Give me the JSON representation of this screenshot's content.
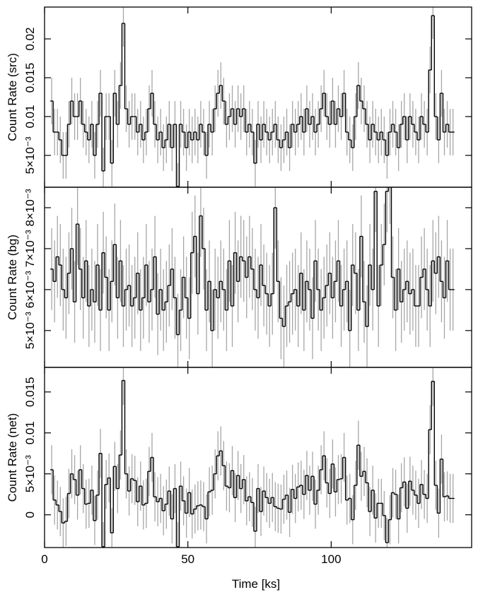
{
  "chart_data": [
    {
      "type": "line",
      "step": true,
      "ylabel": "Count Rate (src)",
      "show_xtick_labels": false,
      "x": [
        2.5,
        3.5,
        4.5,
        5.5,
        6.5,
        7.5,
        8.5,
        9.5,
        10.5,
        11.5,
        12.5,
        13.5,
        14.5,
        15.5,
        16.5,
        17.5,
        18.5,
        19.5,
        20.5,
        21.5,
        22.5,
        23.5,
        24.5,
        25.5,
        26.5,
        27.5,
        28.5,
        29.5,
        30.5,
        31.5,
        32.5,
        33.5,
        34.5,
        35.5,
        36.5,
        37.5,
        38.5,
        39.5,
        40.5,
        41.5,
        42.5,
        43.5,
        44.5,
        45.5,
        46.5,
        47.5,
        48.5,
        49.5,
        50.5,
        51.5,
        52.5,
        53.5,
        54.5,
        55.5,
        56.5,
        57.5,
        58.5,
        59.5,
        60.5,
        61.5,
        62.5,
        63.5,
        64.5,
        65.5,
        66.5,
        67.5,
        68.5,
        69.5,
        70.5,
        71.5,
        72.5,
        73.5,
        74.5,
        75.5,
        76.5,
        77.5,
        78.5,
        79.5,
        80.5,
        81.5,
        82.5,
        83.5,
        84.5,
        85.5,
        86.5,
        87.5,
        88.5,
        89.5,
        90.5,
        91.5,
        92.5,
        93.5,
        94.5,
        95.5,
        96.5,
        97.5,
        98.5,
        99.5,
        100.5,
        101.5,
        102.5,
        103.5,
        104.5,
        105.5,
        106.5,
        107.5,
        108.5,
        109.5,
        110.5,
        111.5,
        112.5,
        113.5,
        114.5,
        115.5,
        116.5,
        117.5,
        118.5,
        119.5,
        120.5,
        121.5,
        122.5,
        123.5,
        124.5,
        125.5,
        126.5,
        127.5,
        128.5,
        129.5,
        130.5,
        131.5,
        132.5,
        133.5,
        134.5,
        135.5,
        136.5,
        137.5,
        138.5,
        139.5,
        140.5,
        141.5,
        142.5
      ],
      "series": [
        {
          "color": "#000000",
          "error_color": "#a6a6a6",
          "error": 0.003,
          "values": [
            0.012,
            0.008,
            0.008,
            0.007,
            0.005,
            0.005,
            0.009,
            0.012,
            0.01,
            0.01,
            0.012,
            0.009,
            0.008,
            0.007,
            0.009,
            0.005,
            0.009,
            0.013,
            0.003,
            0.01,
            0.01,
            0.004,
            0.013,
            0.009,
            0.014,
            0.022,
            0.011,
            0.009,
            0.01,
            0.01,
            0.008,
            0.009,
            0.007,
            0.008,
            0.011,
            0.013,
            0.009,
            0.007,
            0.008,
            0.006,
            0.007,
            0.009,
            0.006,
            0.009,
            0.001,
            0.009,
            0.008,
            0.006,
            0.008,
            0.007,
            0.008,
            0.007,
            0.009,
            0.008,
            0.005,
            0.009,
            0.008,
            0.011,
            0.013,
            0.014,
            0.012,
            0.009,
            0.01,
            0.011,
            0.009,
            0.011,
            0.01,
            0.011,
            0.008,
            0.009,
            0.008,
            0.004,
            0.009,
            0.007,
            0.009,
            0.008,
            0.007,
            0.008,
            0.009,
            0.007,
            0.006,
            0.007,
            0.008,
            0.006,
            0.009,
            0.008,
            0.009,
            0.01,
            0.008,
            0.011,
            0.009,
            0.01,
            0.008,
            0.009,
            0.011,
            0.013,
            0.01,
            0.009,
            0.012,
            0.009,
            0.011,
            0.01,
            0.013,
            0.008,
            0.007,
            0.006,
            0.01,
            0.014,
            0.012,
            0.011,
            0.009,
            0.007,
            0.009,
            0.008,
            0.007,
            0.008,
            0.007,
            0.005,
            0.008,
            0.009,
            0.008,
            0.006,
            0.009,
            0.01,
            0.007,
            0.01,
            0.009,
            0.008,
            0.007,
            0.01,
            0.009,
            0.008,
            0.016,
            0.023,
            0.01,
            0.007,
            0.013,
            0.008,
            0.009,
            0.008,
            0.008
          ]
        }
      ],
      "xlim": [
        0,
        149
      ],
      "xticks": [
        0,
        50,
        100
      ],
      "ylim": [
        0.0009,
        0.0241
      ],
      "yticks": [
        {
          "value": 0.005,
          "label": "5×10⁻³"
        },
        0.01,
        0.015,
        0.02
      ]
    },
    {
      "type": "line",
      "step": true,
      "ylabel": "Count Rate (bg)",
      "show_xtick_labels": false,
      "x": [
        2.5,
        3.5,
        4.5,
        5.5,
        6.5,
        7.5,
        8.5,
        9.5,
        10.5,
        11.5,
        12.5,
        13.5,
        14.5,
        15.5,
        16.5,
        17.5,
        18.5,
        19.5,
        20.5,
        21.5,
        22.5,
        23.5,
        24.5,
        25.5,
        26.5,
        27.5,
        28.5,
        29.5,
        30.5,
        31.5,
        32.5,
        33.5,
        34.5,
        35.5,
        36.5,
        37.5,
        38.5,
        39.5,
        40.5,
        41.5,
        42.5,
        43.5,
        44.5,
        45.5,
        46.5,
        47.5,
        48.5,
        49.5,
        50.5,
        51.5,
        52.5,
        53.5,
        54.5,
        55.5,
        56.5,
        57.5,
        58.5,
        59.5,
        60.5,
        61.5,
        62.5,
        63.5,
        64.5,
        65.5,
        66.5,
        67.5,
        68.5,
        69.5,
        70.5,
        71.5,
        72.5,
        73.5,
        74.5,
        75.5,
        76.5,
        77.5,
        78.5,
        79.5,
        80.5,
        81.5,
        82.5,
        83.5,
        84.5,
        85.5,
        86.5,
        87.5,
        88.5,
        89.5,
        90.5,
        91.5,
        92.5,
        93.5,
        94.5,
        95.5,
        96.5,
        97.5,
        98.5,
        99.5,
        100.5,
        101.5,
        102.5,
        103.5,
        104.5,
        105.5,
        106.5,
        107.5,
        108.5,
        109.5,
        110.5,
        111.5,
        112.5,
        113.5,
        114.5,
        115.5,
        116.5,
        117.5,
        118.5,
        119.5,
        120.5,
        121.5,
        122.5,
        123.5,
        124.5,
        125.5,
        126.5,
        127.5,
        128.5,
        129.5,
        130.5,
        131.5,
        132.5,
        133.5,
        134.5,
        135.5,
        136.5,
        137.5,
        138.5,
        139.5,
        140.5,
        141.5,
        142.5
      ],
      "series": [
        {
          "color": "#000000",
          "error_color": "#a6a6a6",
          "error": 0.001,
          "values": [
            0.0065,
            0.0062,
            0.0068,
            0.0066,
            0.006,
            0.0058,
            0.0064,
            0.007,
            0.0057,
            0.0076,
            0.0065,
            0.0058,
            0.0067,
            0.0056,
            0.006,
            0.0057,
            0.0066,
            0.0055,
            0.0069,
            0.0063,
            0.0055,
            0.0062,
            0.0071,
            0.0058,
            0.0067,
            0.0056,
            0.006,
            0.0061,
            0.0056,
            0.0058,
            0.0064,
            0.0055,
            0.0058,
            0.0066,
            0.0057,
            0.006,
            0.0068,
            0.0054,
            0.006,
            0.0055,
            0.0057,
            0.0061,
            0.0065,
            0.0058,
            0.0049,
            0.0055,
            0.0063,
            0.0058,
            0.0053,
            0.0069,
            0.0073,
            0.0059,
            0.0078,
            0.007,
            0.0055,
            0.0062,
            0.005,
            0.006,
            0.0058,
            0.0062,
            0.006,
            0.0055,
            0.0067,
            0.0056,
            0.0069,
            0.0062,
            0.0068,
            0.0067,
            0.0063,
            0.0068,
            0.0065,
            0.006,
            0.0058,
            0.0066,
            0.0061,
            0.0059,
            0.0056,
            0.0059,
            0.008,
            0.0062,
            0.0053,
            0.0051,
            0.0056,
            0.0057,
            0.0059,
            0.006,
            0.0056,
            0.0064,
            0.0055,
            0.0062,
            0.006,
            0.0053,
            0.0067,
            0.006,
            0.0055,
            0.0058,
            0.0061,
            0.0064,
            0.0058,
            0.0062,
            0.0067,
            0.0056,
            0.006,
            0.0062,
            0.005,
            0.0066,
            0.0064,
            0.0055,
            0.0073,
            0.0057,
            0.0051,
            0.0066,
            0.006,
            0.0084,
            0.0056,
            0.0066,
            0.0071,
            0.0084,
            0.0086,
            0.0063,
            0.0055,
            0.0065,
            0.0057,
            0.006,
            0.0062,
            0.0059,
            0.006,
            0.0056,
            0.0056,
            0.0063,
            0.0065,
            0.006,
            0.0056,
            0.0067,
            0.0064,
            0.0068,
            0.0062,
            0.0058,
            0.0067,
            0.006,
            0.006
          ]
        }
      ],
      "xlim": [
        0,
        149
      ],
      "xticks": [
        0,
        50,
        100
      ],
      "ylim": [
        0.0041,
        0.0085
      ],
      "yticks": [
        {
          "value": 0.005,
          "label": "5×10⁻³"
        },
        {
          "value": 0.006,
          "label": "6×10⁻³"
        },
        {
          "value": 0.007,
          "label": "7×10⁻³"
        },
        {
          "value": 0.008,
          "label": "8×10⁻³"
        }
      ]
    },
    {
      "type": "line",
      "step": true,
      "ylabel": "Count Rate (net)",
      "xlabel": "Time [ks]",
      "show_xtick_labels": true,
      "x": [
        2.5,
        3.5,
        4.5,
        5.5,
        6.5,
        7.5,
        8.5,
        9.5,
        10.5,
        11.5,
        12.5,
        13.5,
        14.5,
        15.5,
        16.5,
        17.5,
        18.5,
        19.5,
        20.5,
        21.5,
        22.5,
        23.5,
        24.5,
        25.5,
        26.5,
        27.5,
        28.5,
        29.5,
        30.5,
        31.5,
        32.5,
        33.5,
        34.5,
        35.5,
        36.5,
        37.5,
        38.5,
        39.5,
        40.5,
        41.5,
        42.5,
        43.5,
        44.5,
        45.5,
        46.5,
        47.5,
        48.5,
        49.5,
        50.5,
        51.5,
        52.5,
        53.5,
        54.5,
        55.5,
        56.5,
        57.5,
        58.5,
        59.5,
        60.5,
        61.5,
        62.5,
        63.5,
        64.5,
        65.5,
        66.5,
        67.5,
        68.5,
        69.5,
        70.5,
        71.5,
        72.5,
        73.5,
        74.5,
        75.5,
        76.5,
        77.5,
        78.5,
        79.5,
        80.5,
        81.5,
        82.5,
        83.5,
        84.5,
        85.5,
        86.5,
        87.5,
        88.5,
        89.5,
        90.5,
        91.5,
        92.5,
        93.5,
        94.5,
        95.5,
        96.5,
        97.5,
        98.5,
        99.5,
        100.5,
        101.5,
        102.5,
        103.5,
        104.5,
        105.5,
        106.5,
        107.5,
        108.5,
        109.5,
        110.5,
        111.5,
        112.5,
        113.5,
        114.5,
        115.5,
        116.5,
        117.5,
        118.5,
        119.5,
        120.5,
        121.5,
        122.5,
        123.5,
        124.5,
        125.5,
        126.5,
        127.5,
        128.5,
        129.5,
        130.5,
        131.5,
        132.5,
        133.5,
        134.5,
        135.5,
        136.5,
        137.5,
        138.5,
        139.5,
        140.5,
        141.5,
        142.5
      ],
      "series": [
        {
          "color": "#000000",
          "error_color": "#a6a6a6",
          "error": 0.003,
          "values": [
            0.0055,
            0.0018,
            0.0012,
            0.0004,
            -0.001,
            -0.0008,
            0.0026,
            0.005,
            0.0043,
            0.0024,
            0.0055,
            0.0032,
            0.0013,
            0.0014,
            0.003,
            -0.0007,
            0.0024,
            0.0075,
            -0.0039,
            0.0037,
            0.0045,
            -0.0022,
            0.0059,
            0.0032,
            0.0073,
            0.0164,
            0.005,
            0.0029,
            0.0044,
            0.0042,
            0.0016,
            0.0035,
            0.0012,
            0.0014,
            0.0053,
            0.007,
            0.0022,
            0.0016,
            0.002,
            0.0005,
            0.0013,
            0.0029,
            -0.0005,
            0.0032,
            -0.0039,
            0.0035,
            0.0017,
            0.0002,
            0.0027,
            0.0001,
            0.0007,
            0.0011,
            0.0012,
            0.001,
            -0.0005,
            0.0028,
            0.003,
            0.005,
            0.0072,
            0.0078,
            0.006,
            0.0035,
            0.0033,
            0.0054,
            0.0021,
            0.0048,
            0.0032,
            0.0043,
            0.0017,
            0.0022,
            0.0015,
            -0.002,
            0.0032,
            0.0004,
            0.0029,
            0.0021,
            0.0014,
            0.0021,
            0.001,
            0.0008,
            0.0007,
            0.0019,
            0.0024,
            0.0003,
            0.0031,
            0.002,
            0.0034,
            0.0036,
            0.0025,
            0.0048,
            0.003,
            0.0047,
            0.0013,
            0.003,
            0.0055,
            0.0072,
            0.0039,
            0.0026,
            0.0062,
            0.0028,
            0.0043,
            0.0044,
            0.007,
            0.0018,
            0.002,
            -0.0006,
            0.0036,
            0.0085,
            0.0047,
            0.0053,
            0.0039,
            0.0004,
            0.003,
            -0.0004,
            0.0014,
            0.0014,
            -0.0001,
            -0.0034,
            -0.0006,
            0.0027,
            0.0025,
            -0.0005,
            0.0033,
            0.004,
            0.0008,
            0.0041,
            0.003,
            0.0024,
            0.0014,
            0.0037,
            0.0025,
            0.002,
            0.0104,
            0.0163,
            0.0036,
            0.0002,
            0.0068,
            0.0022,
            0.0023,
            0.002,
            0.002
          ]
        }
      ],
      "xlim": [
        0,
        149
      ],
      "xticks": [
        0,
        50,
        100
      ],
      "ylim": [
        -0.004,
        0.018
      ],
      "yticks": [
        0,
        {
          "value": 0.005,
          "label": "5×10⁻³"
        },
        0.01,
        0.015
      ]
    }
  ]
}
